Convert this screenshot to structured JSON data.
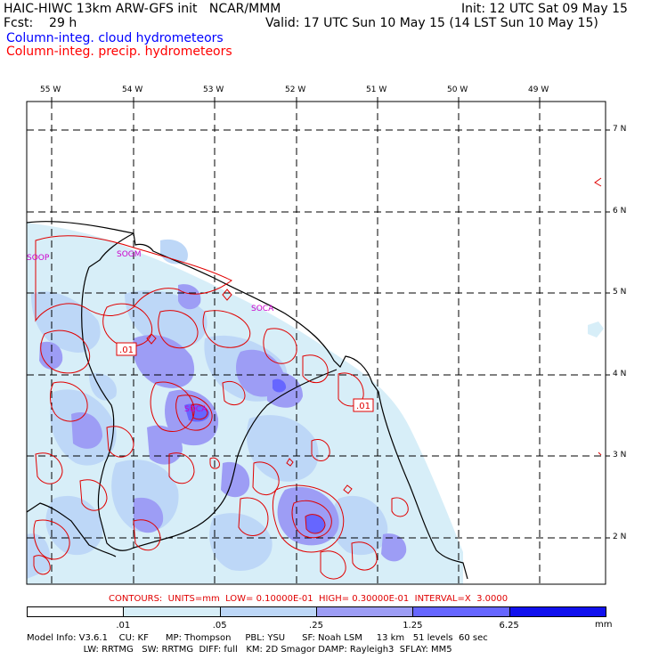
{
  "header": {
    "line1_left": "HAIC-HIWC 13km ARW-GFS init   NCAR/MMM",
    "line2_left": "Fcst:    29 h",
    "line1_right": "Init: 12 UTC Sat 09 May 15",
    "line2_right": "Valid: 17 UTC Sun 10 May 15 (14 LST Sun 10 May 15)",
    "legend_cloud": "Column-integ. cloud hydrometeors",
    "legend_precip": "Column-integ. precip. hydrometeors",
    "legend_cloud_color": "#0000ff",
    "legend_precip_color": "#ff0000"
  },
  "map": {
    "lon_labels": [
      "55 W",
      "54 W",
      "53 W",
      "52 W",
      "51 W",
      "50 W",
      "49 W"
    ],
    "lat_labels": [
      "7 N",
      "6 N",
      "5 N",
      "4 N",
      "3 N",
      "2 N"
    ],
    "stations": [
      "SOOP",
      "SOCA",
      "SOCA"
    ],
    "station_label_color": "#cc00cc",
    "contour_box_labels": [
      ".01",
      ".01"
    ]
  },
  "contours_line": "CONTOURS:  UNITS=mm  LOW= 0.10000E-01  HIGH= 0.30000E-01  INTERVAL=X  3.0000",
  "colorbar": {
    "labels": [
      ".01",
      ".05",
      ".25",
      "1.25",
      "6.25"
    ],
    "unit": "mm",
    "colors": [
      "#ffffff",
      "#d7eef8",
      "#bdd7f7",
      "#9d9df5",
      "#6666ff",
      "#1111ee"
    ]
  },
  "model_info": {
    "line1": "Model Info: V3.6.1    CU: KF      MP: Thompson     PBL: YSU      SF: Noah LSM     13 km   51 levels  60 sec",
    "line2": "                    LW: RRTMG   SW: RRTMG  DIFF: full   KM: 2D Smagor DAMP: Rayleigh3  SFLAY: MM5"
  }
}
